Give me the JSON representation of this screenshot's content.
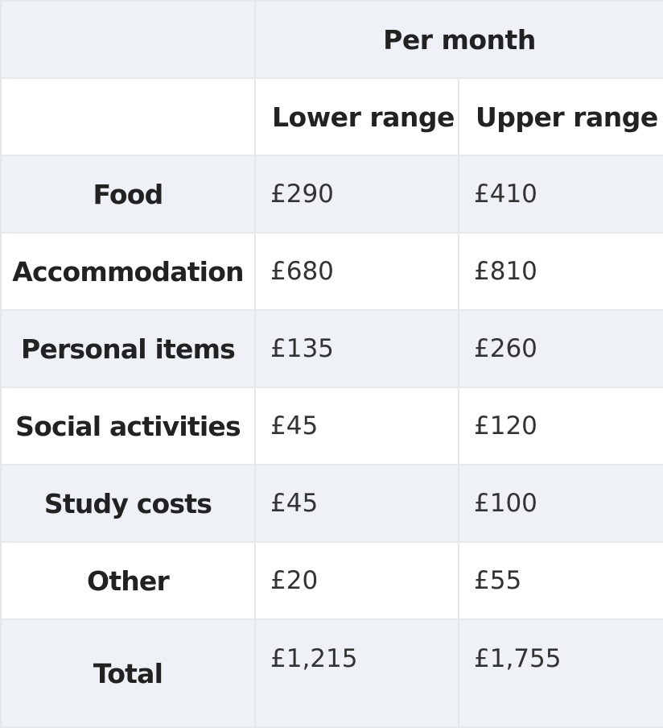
{
  "table": {
    "group_header": "Per month",
    "column_headers": {
      "lower": "Lower range",
      "upper": "Upper range"
    },
    "rows": [
      {
        "label": "Food",
        "lower": "£290",
        "upper": "£410"
      },
      {
        "label": "Accommodation",
        "lower": "£680",
        "upper": "£810"
      },
      {
        "label": "Personal items",
        "lower": "£135",
        "upper": "£260"
      },
      {
        "label": "Social activities",
        "lower": "£45",
        "upper": "£120"
      },
      {
        "label": "Study costs",
        "lower": "£45",
        "upper": "£100"
      },
      {
        "label": "Other",
        "lower": "£20",
        "upper": "£55"
      },
      {
        "label": "Total",
        "lower": "£1,215",
        "upper": "£1,755"
      }
    ]
  },
  "colors": {
    "shaded_row": "#eef2f7",
    "border": "#e3e6ea",
    "text": "#222222"
  }
}
